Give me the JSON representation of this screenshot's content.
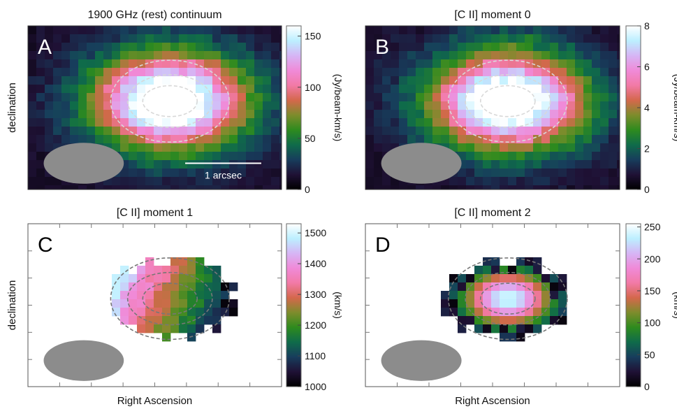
{
  "colormap": [
    "#000000",
    "#1f1135",
    "#173d5c",
    "#0f6b4a",
    "#2e8b1e",
    "#7e8c2c",
    "#d4684c",
    "#f27aa6",
    "#f08ad8",
    "#d6b5f5",
    "#bcefff",
    "#ffffff"
  ],
  "panels": [
    {
      "id": "A",
      "title": "1900 GHz (rest) continuum",
      "letter": "A",
      "mode": "map",
      "ylabel": "declination",
      "xlabel": "",
      "cb_label": "(Jy/beam-km/s)",
      "cb_ticks": [
        0,
        50,
        100,
        150
      ],
      "cb_ticks_text": [
        "0",
        "50",
        "100",
        "150"
      ],
      "cb_range": [
        0,
        160
      ],
      "scalebar_label": "1 arcsec",
      "background": "#000000"
    },
    {
      "id": "B",
      "title": "[C II] moment 0",
      "letter": "B",
      "mode": "map",
      "ylabel": "",
      "xlabel": "",
      "cb_label": "(Jy/beam-km/s)",
      "cb_ticks": [
        0,
        2,
        4,
        6,
        8
      ],
      "cb_ticks_text": [
        "0",
        "2",
        "4",
        "6",
        "8"
      ],
      "cb_range": [
        0,
        8
      ],
      "background": "#000000"
    },
    {
      "id": "C",
      "title": "[C II] moment 1",
      "letter": "C",
      "mode": "vel",
      "ylabel": "declination",
      "xlabel": "Right Ascension",
      "cb_label": "(km/s)",
      "cb_ticks": [
        1000,
        1100,
        1200,
        1300,
        1400,
        1500
      ],
      "cb_ticks_text": [
        "1000",
        "1100",
        "1200",
        "1300",
        "1400",
        "1500"
      ],
      "cb_range": [
        1000,
        1530
      ],
      "background": "#ffffff"
    },
    {
      "id": "D",
      "title": "[C II] moment 2",
      "letter": "D",
      "mode": "disp",
      "ylabel": "",
      "xlabel": "Right Ascension",
      "cb_label": "(km/s)",
      "cb_ticks": [
        0,
        50,
        100,
        150,
        200,
        250
      ],
      "cb_ticks_text": [
        "0",
        "50",
        "100",
        "150",
        "200",
        "250"
      ],
      "cb_range": [
        0,
        255
      ],
      "background": "#ffffff"
    }
  ],
  "chart_data": [
    {
      "type": "heatmap",
      "title": "1900 GHz (rest) continuum",
      "panel": "A",
      "xlabel": "",
      "ylabel": "declination",
      "colorbar_label": "(Jy/beam-km/s)",
      "colorbar_range": [
        0,
        160
      ],
      "colorbar_ticks": [
        0,
        50,
        100,
        150
      ],
      "peak_value": 155,
      "annotation": "1 arcsec"
    },
    {
      "type": "heatmap",
      "title": "[C II] moment 0",
      "panel": "B",
      "xlabel": "",
      "ylabel": "",
      "colorbar_label": "(Jy/beam-km/s)",
      "colorbar_range": [
        0,
        8
      ],
      "colorbar_ticks": [
        0,
        2,
        4,
        6,
        8
      ],
      "peak_value": 7.8
    },
    {
      "type": "heatmap",
      "title": "[C II] moment 1",
      "panel": "C",
      "xlabel": "Right Ascension",
      "ylabel": "declination",
      "colorbar_label": "(km/s)",
      "colorbar_range": [
        1000,
        1530
      ],
      "colorbar_ticks": [
        1000,
        1100,
        1200,
        1300,
        1400,
        1500
      ]
    },
    {
      "type": "heatmap",
      "title": "[C II] moment 2",
      "panel": "D",
      "xlabel": "Right Ascension",
      "ylabel": "",
      "colorbar_label": "(km/s)",
      "colorbar_range": [
        0,
        255
      ],
      "colorbar_ticks": [
        0,
        50,
        100,
        150,
        200,
        250
      ]
    }
  ]
}
